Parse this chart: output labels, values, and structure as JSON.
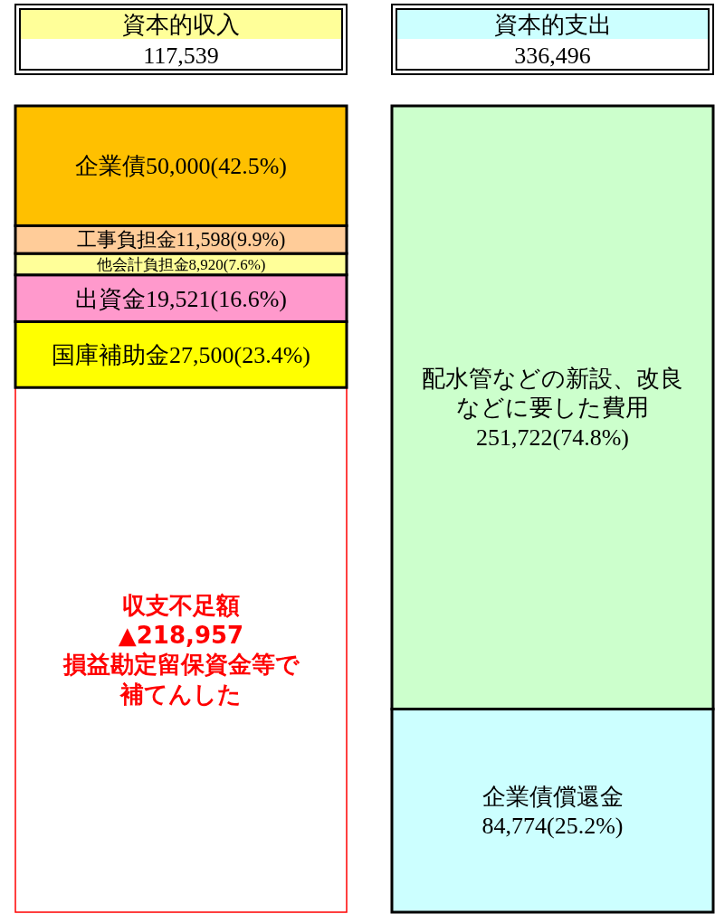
{
  "chart_data": {
    "type": "bar",
    "stacked": true,
    "categories": [
      "資本的収入",
      "資本的支出"
    ],
    "series": [
      {
        "name": "収支不足額",
        "color": "#ffffff",
        "values": [
          218957,
          null
        ],
        "value_labels": [
          "▲218,957",
          null
        ]
      },
      {
        "name": "国庫補助金",
        "color": "#ffff00",
        "values": [
          27500,
          null
        ],
        "value_labels": [
          "27,500(23.4%)",
          null
        ]
      },
      {
        "name": "出資金",
        "color": "#ff99cc",
        "values": [
          19521,
          null
        ],
        "value_labels": [
          "19,521(16.6%)",
          null
        ]
      },
      {
        "name": "他会計負担金",
        "color": "#ffff99",
        "values": [
          8920,
          null
        ],
        "value_labels": [
          "8,920(7.6%)",
          null
        ]
      },
      {
        "name": "工事負担金",
        "color": "#ffcc99",
        "values": [
          11598,
          null
        ],
        "value_labels": [
          "11,598(9.9%)",
          null
        ]
      },
      {
        "name": "企業債",
        "color": "#ffc000",
        "values": [
          50000,
          null
        ],
        "value_labels": [
          "50,000(42.5%)",
          null
        ]
      },
      {
        "name": "企業債償還金",
        "color": "#ccffff",
        "values": [
          null,
          84774
        ],
        "value_labels": [
          null,
          "84,774(25.2%)"
        ]
      },
      {
        "name": "配水管などの新設、改良などに要した費用",
        "color": "#ccffcc",
        "values": [
          null,
          251722
        ],
        "value_labels": [
          null,
          "251,722(74.8%)"
        ]
      }
    ],
    "annotations": [
      "117,539",
      "336,496",
      "損益勘定留保資金等で補てんした"
    ]
  }
}
